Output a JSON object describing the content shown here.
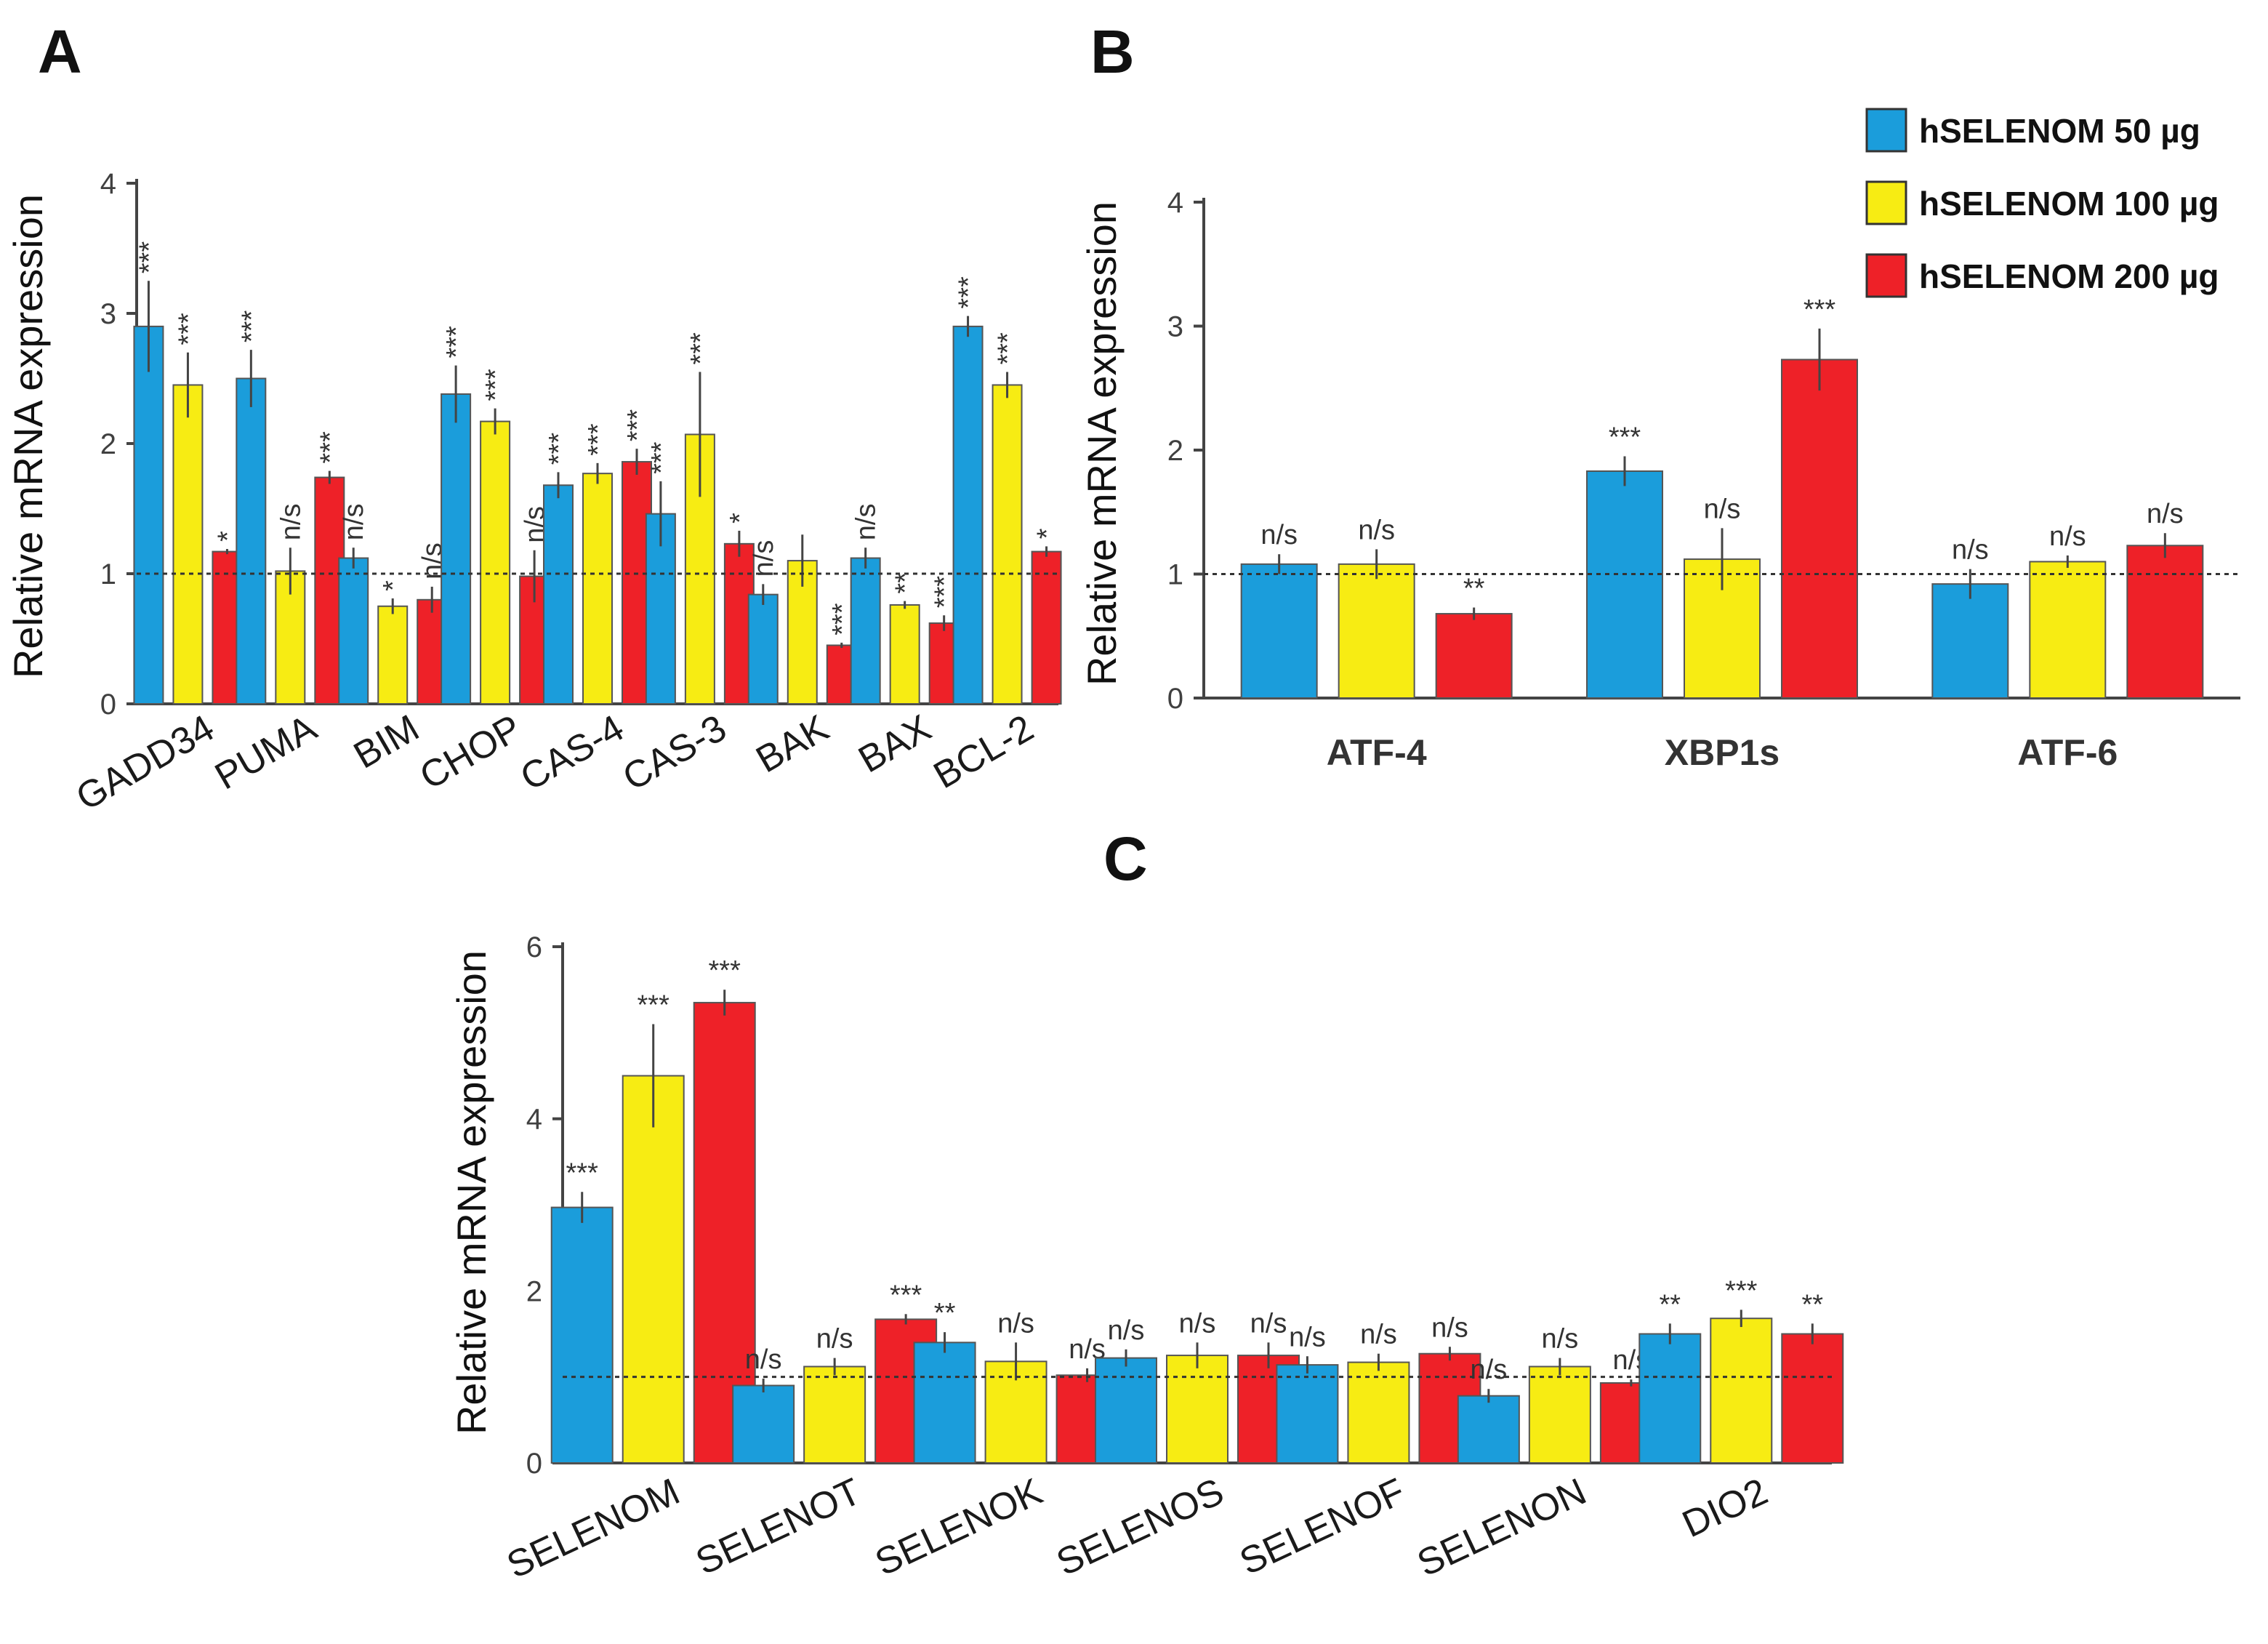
{
  "legend": [
    {
      "label": "hSELENOM 50 µg",
      "color": "#1b9ddb"
    },
    {
      "label": "hSELENOM 100 µg",
      "color": "#f7ec13"
    },
    {
      "label": "hSELENOM 200 µg",
      "color": "#ee2128"
    }
  ],
  "chart_data": [
    {
      "panel": "A",
      "type": "bar",
      "ylabel": "Relative mRNA expression",
      "ylim": [
        0,
        4
      ],
      "yticks": [
        "0",
        "1",
        "2",
        "3",
        "4"
      ],
      "reference_line": 1,
      "categories": [
        "GADD34",
        "PUMA",
        "BIM",
        "CHOP",
        "CAS-4",
        "CAS-3",
        "BAK",
        "BAX",
        "BCL-2"
      ],
      "series": [
        {
          "name": "hSELENOM 50 µg",
          "values": [
            2.9,
            2.5,
            1.12,
            2.38,
            1.68,
            1.46,
            0.84,
            1.12,
            2.9
          ],
          "errors": [
            0.35,
            0.22,
            0.08,
            0.22,
            0.1,
            0.25,
            0.08,
            0.08,
            0.08
          ],
          "labels": [
            "***",
            "***",
            "n/s",
            "***",
            "***",
            "***",
            "n/s",
            "n/s",
            "***"
          ]
        },
        {
          "name": "hSELENOM 100 µg",
          "values": [
            2.45,
            1.02,
            0.75,
            2.17,
            1.77,
            2.07,
            1.1,
            0.76,
            2.45
          ],
          "errors": [
            0.25,
            0.18,
            0.06,
            0.1,
            0.08,
            0.48,
            0.2,
            0.03,
            0.1
          ],
          "labels": [
            "***",
            "n/s",
            "*",
            "***",
            "***",
            "***",
            "",
            "**",
            "***"
          ]
        },
        {
          "name": "hSELENOM 200 µg",
          "values": [
            1.17,
            1.74,
            0.8,
            0.98,
            1.86,
            1.23,
            0.45,
            0.62,
            1.17
          ],
          "errors": [
            0.02,
            0.05,
            0.1,
            0.2,
            0.1,
            0.1,
            0.02,
            0.06,
            0.04
          ],
          "labels": [
            "*",
            "***",
            "n/s",
            "n/s",
            "***",
            "*",
            "***",
            "***",
            "*"
          ]
        }
      ]
    },
    {
      "panel": "B",
      "type": "bar",
      "ylabel": "Relative mRNA expression",
      "ylim": [
        0,
        4
      ],
      "yticks": [
        "0",
        "1",
        "2",
        "3",
        "4"
      ],
      "reference_line": 1,
      "categories": [
        "ATF-4",
        "XBP1s",
        "ATF-6"
      ],
      "series": [
        {
          "name": "hSELENOM 50 µg",
          "values": [
            1.08,
            1.83,
            0.92
          ],
          "errors": [
            0.08,
            0.12,
            0.12
          ],
          "labels": [
            "n/s",
            "***",
            "n/s"
          ]
        },
        {
          "name": "hSELENOM 100 µg",
          "values": [
            1.08,
            1.12,
            1.1
          ],
          "errors": [
            0.12,
            0.25,
            0.05
          ],
          "labels": [
            "n/s",
            "n/s",
            "n/s"
          ]
        },
        {
          "name": "hSELENOM 200 µg",
          "values": [
            0.68,
            2.73,
            1.23
          ],
          "errors": [
            0.05,
            0.25,
            0.1
          ],
          "labels": [
            "**",
            "***",
            "n/s"
          ]
        }
      ]
    },
    {
      "panel": "C",
      "type": "bar",
      "ylabel": "Relative mRNA expression",
      "ylim": [
        0,
        6
      ],
      "yticks": [
        "0",
        "2",
        "4",
        "6"
      ],
      "reference_line": 1,
      "categories": [
        "SELENOM",
        "SELENOT",
        "SELENOK",
        "SELENOS",
        "SELENOF",
        "SELENON",
        "DIO2"
      ],
      "series": [
        {
          "name": "hSELENOM 50 µg",
          "values": [
            2.97,
            0.9,
            1.4,
            1.22,
            1.14,
            0.78,
            1.5
          ],
          "errors": [
            0.18,
            0.08,
            0.12,
            0.1,
            0.1,
            0.08,
            0.12
          ],
          "labels": [
            "***",
            "n/s",
            "**",
            "n/s",
            "n/s",
            "n/s",
            "**"
          ]
        },
        {
          "name": "hSELENOM 100 µg",
          "values": [
            4.5,
            1.12,
            1.18,
            1.25,
            1.17,
            1.12,
            1.68
          ],
          "errors": [
            0.6,
            0.1,
            0.22,
            0.15,
            0.1,
            0.1,
            0.1
          ],
          "labels": [
            "***",
            "n/s",
            "n/s",
            "n/s",
            "n/s",
            "n/s",
            "***"
          ]
        },
        {
          "name": "hSELENOM 200 µg",
          "values": [
            5.35,
            1.67,
            1.02,
            1.25,
            1.27,
            0.93,
            1.5
          ],
          "errors": [
            0.15,
            0.06,
            0.08,
            0.15,
            0.08,
            0.04,
            0.12
          ],
          "labels": [
            "***",
            "***",
            "n/s",
            "n/s",
            "n/s",
            "n/s",
            "**"
          ]
        }
      ]
    }
  ]
}
